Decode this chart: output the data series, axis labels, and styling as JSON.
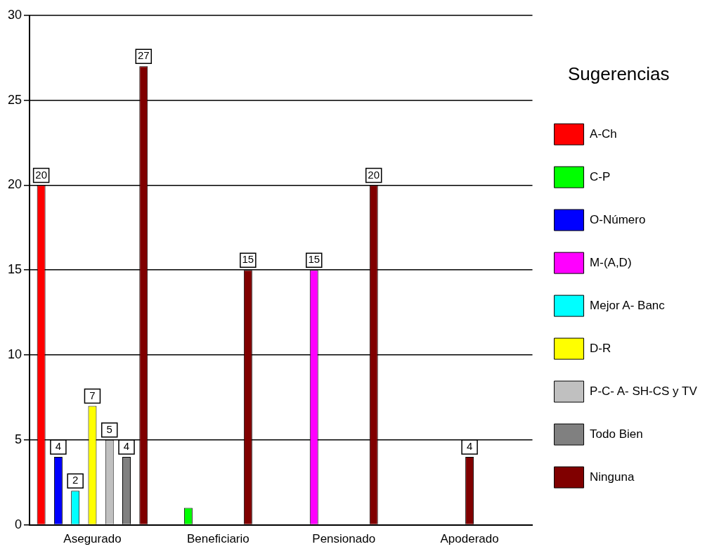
{
  "chart_data": {
    "type": "bar",
    "legend_title": "Sugerencias",
    "categories": [
      "Asegurado",
      "Beneficiario",
      "Pensionado",
      "Apoderado"
    ],
    "series": [
      {
        "name": "A-Ch",
        "color": "#ff0000",
        "values": [
          20,
          null,
          null,
          null
        ],
        "value_labels": [
          "20",
          null,
          null,
          null
        ]
      },
      {
        "name": "C-P",
        "color": "#00ff00",
        "values": [
          null,
          1,
          null,
          null
        ],
        "value_labels": [
          null,
          null,
          null,
          null
        ]
      },
      {
        "name": "O-Número",
        "color": "#0000ff",
        "values": [
          4,
          null,
          null,
          null
        ],
        "value_labels": [
          "4",
          null,
          null,
          null
        ]
      },
      {
        "name": "M-(A,D)",
        "color": "#ff00ff",
        "values": [
          null,
          null,
          15,
          null
        ],
        "value_labels": [
          null,
          null,
          "15",
          null
        ]
      },
      {
        "name": "Mejor A- Banc",
        "color": "#00ffff",
        "values": [
          2,
          null,
          null,
          null
        ],
        "value_labels": [
          "2",
          null,
          null,
          null
        ]
      },
      {
        "name": "D-R",
        "color": "#ffff00",
        "values": [
          7,
          null,
          null,
          null
        ],
        "value_labels": [
          "7",
          null,
          null,
          null
        ]
      },
      {
        "name": "P-C- A- SH-CS y TV",
        "color": "#c0c0c0",
        "values": [
          5,
          null,
          null,
          null
        ],
        "value_labels": [
          "5",
          null,
          null,
          null
        ]
      },
      {
        "name": "Todo Bien",
        "color": "#808080",
        "values": [
          4,
          null,
          null,
          null
        ],
        "value_labels": [
          "4",
          null,
          null,
          null
        ]
      },
      {
        "name": "Ninguna",
        "color": "#800000",
        "values": [
          27,
          15,
          20,
          4
        ],
        "value_labels": [
          "27",
          "15",
          "20",
          "4"
        ]
      }
    ],
    "ylim": [
      0,
      30
    ],
    "yticks": [
      0,
      5,
      10,
      15,
      20,
      25,
      30
    ],
    "grid": "y",
    "legend": "right"
  }
}
